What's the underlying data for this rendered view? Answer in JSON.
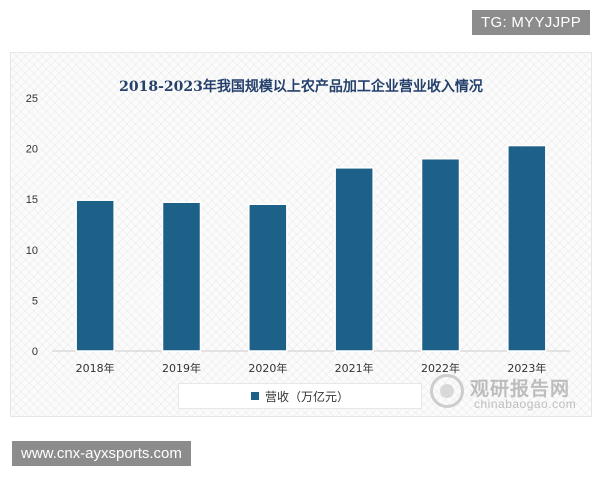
{
  "top_tag": "TG: MYYJJPP",
  "footer_tag": "www.cnx-ayxsports.com",
  "watermark": {
    "name_cn": "观研报告网",
    "url": "chinabaogao.com"
  },
  "colors": {
    "bar": "#1d6188",
    "title": "#24406b",
    "axis_text": "#333333"
  },
  "chart_data": {
    "type": "bar",
    "title": "2018-2023年我国规模以上农产品加工企业营业收入情况",
    "categories": [
      "2018年",
      "2019年",
      "2020年",
      "2021年",
      "2022年",
      "2023年"
    ],
    "series": [
      {
        "name": "营收（万亿元）",
        "values": [
          14.9,
          14.7,
          14.5,
          18.1,
          19.0,
          20.3
        ]
      }
    ],
    "yticks": [
      0,
      5,
      10,
      15,
      20,
      25
    ],
    "ylim": [
      0,
      25
    ],
    "grid": false,
    "legend_position": "bottom"
  }
}
